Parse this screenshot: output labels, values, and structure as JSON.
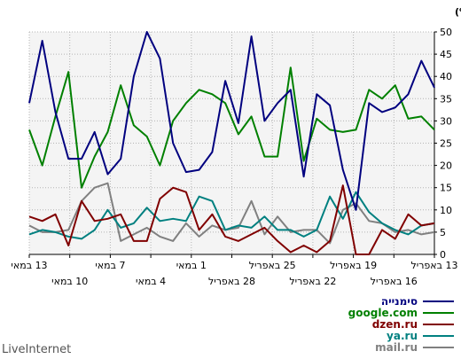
{
  "chart_data": {
    "type": "line",
    "ylabel": "חלק (%)",
    "ylim": [
      0,
      50
    ],
    "yticks": [
      0,
      5,
      10,
      15,
      20,
      25,
      30,
      35,
      40,
      45,
      50
    ],
    "grid": true,
    "legend_position": "bottom-right",
    "x_label_rows": [
      [
        "13 במאי",
        "7 במאי",
        "1 במאי",
        "25 באפריל",
        "19 באפריל",
        "13 באפריל"
      ],
      [
        "10 במאי",
        "4 במאי",
        "28 באפריל",
        "22 באפריל",
        "16 באפריל"
      ]
    ],
    "series": [
      {
        "name": "סימנייה",
        "color": "#00007f",
        "values": [
          34,
          48,
          32,
          21.5,
          21.5,
          27.5,
          18,
          21.5,
          40,
          50,
          44,
          25,
          18.5,
          19,
          23,
          39,
          29.5,
          49,
          30,
          34,
          37,
          17.5,
          36,
          33.5,
          19,
          10,
          34,
          32,
          33,
          36,
          43.5,
          37.5
        ]
      },
      {
        "name": "google.com",
        "color": "#008000",
        "values": [
          28,
          20,
          31,
          41,
          15,
          22,
          27.5,
          38,
          29,
          26.5,
          20,
          30,
          34,
          37,
          36,
          34,
          27,
          31,
          22,
          22,
          42,
          21,
          30.5,
          28,
          27.5,
          28,
          37,
          35,
          38,
          30.5,
          31,
          28
        ]
      },
      {
        "name": "dzen.ru",
        "color": "#800000",
        "values": [
          8.5,
          7.5,
          9,
          2,
          12,
          7.5,
          8,
          9,
          3,
          3,
          12.5,
          15,
          14,
          5.5,
          9,
          4,
          3,
          4.5,
          6,
          3,
          0.5,
          2,
          0.5,
          3,
          15.5,
          0,
          0,
          5.5,
          3.5,
          9,
          6.5,
          7
        ]
      },
      {
        "name": "ya.ru",
        "color": "#008080",
        "values": [
          4.5,
          5.5,
          5,
          4,
          3.5,
          5.5,
          10,
          6,
          7,
          10.5,
          7.5,
          8,
          7.5,
          13,
          12,
          5.5,
          6.5,
          6,
          8.5,
          5.5,
          5.5,
          4,
          5.5,
          13,
          8,
          14,
          9.5,
          7,
          5.5,
          4.5,
          6.5,
          7
        ]
      },
      {
        "name": "mail.ru",
        "color": "#808080",
        "values": [
          6.5,
          5,
          5,
          5.5,
          12,
          15,
          16,
          3,
          4.5,
          6,
          4,
          3,
          7,
          4,
          6.5,
          5.5,
          6,
          12,
          4.5,
          8.5,
          5,
          5.5,
          5.5,
          2.5,
          10,
          11.5,
          7.5,
          7,
          5,
          5.5,
          4.5,
          5
        ]
      }
    ]
  },
  "footer": {
    "brand": "LiveInternet"
  }
}
